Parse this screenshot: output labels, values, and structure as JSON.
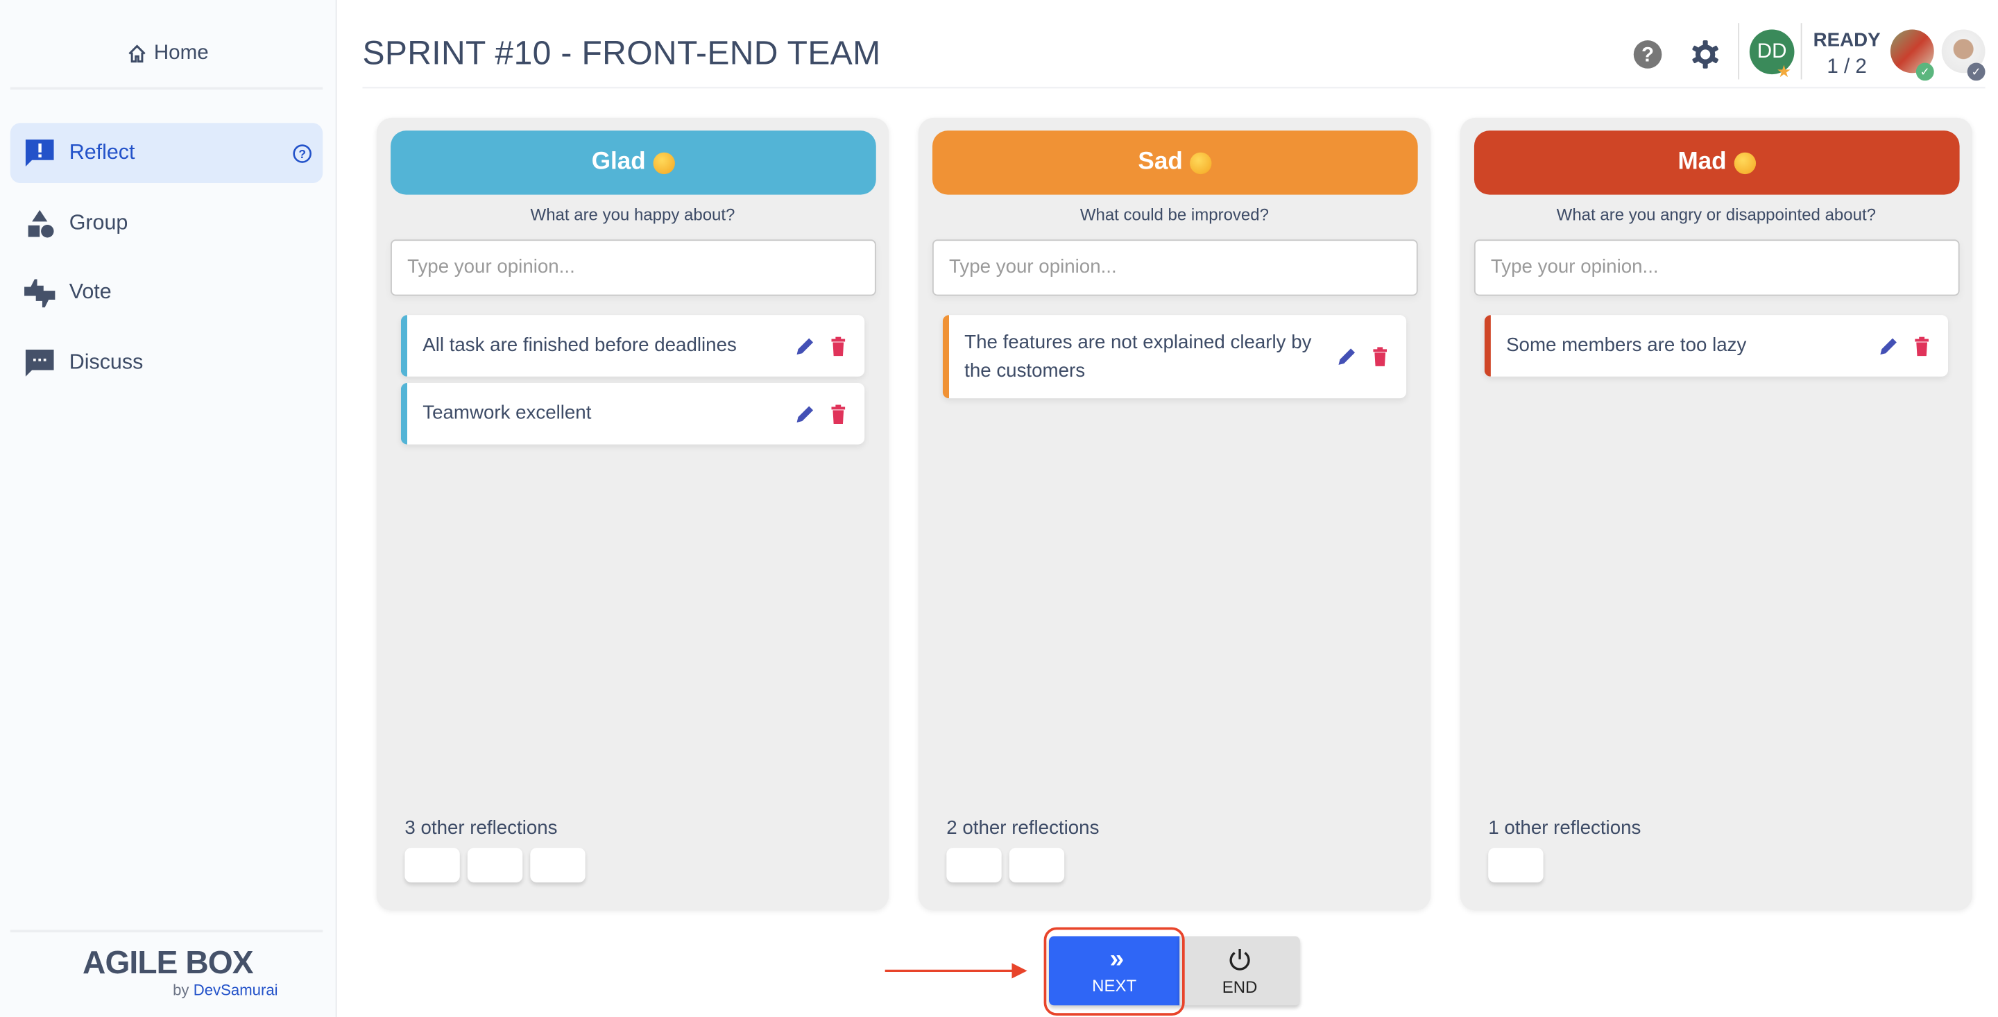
{
  "sidebar": {
    "home": "Home",
    "items": [
      {
        "label": "Reflect",
        "icon": "reflect-icon",
        "active": true
      },
      {
        "label": "Group",
        "icon": "shapes-icon"
      },
      {
        "label": "Vote",
        "icon": "thumbs-icon"
      },
      {
        "label": "Discuss",
        "icon": "comment-dots-icon"
      }
    ],
    "logo": "AGILE BOX",
    "by": "by",
    "brand": "DevSamurai"
  },
  "header": {
    "title": "SPRINT #10 - FRONT-END TEAM",
    "avatar_initials": "DD",
    "ready_label": "READY",
    "ready_count": "1 / 2"
  },
  "columns": [
    {
      "title": "Glad",
      "color": "#53b4d6",
      "subtitle": "What are you happy about?",
      "placeholder": "Type your opinion...",
      "cards": [
        "All task are finished before deadlines",
        "Teamwork excellent"
      ],
      "others": "3 other reflections",
      "other_count": 3
    },
    {
      "title": "Sad",
      "color": "#f09235",
      "subtitle": "What could be improved?",
      "placeholder": "Type your opinion...",
      "cards": [
        "The features are not explained clearly by the customers"
      ],
      "others": "2 other reflections",
      "other_count": 2
    },
    {
      "title": "Mad",
      "color": "#cf4526",
      "subtitle": "What are you angry or disappointed about?",
      "placeholder": "Type your opinion...",
      "cards": [
        "Some members are too lazy"
      ],
      "others": "1 other reflections",
      "other_count": 1
    }
  ],
  "footer": {
    "next": "NEXT",
    "end": "END"
  },
  "colors": {
    "accent": "#2f66f6",
    "highlight": "#e8442a",
    "edit": "#4350b5",
    "delete": "#e0335a"
  }
}
